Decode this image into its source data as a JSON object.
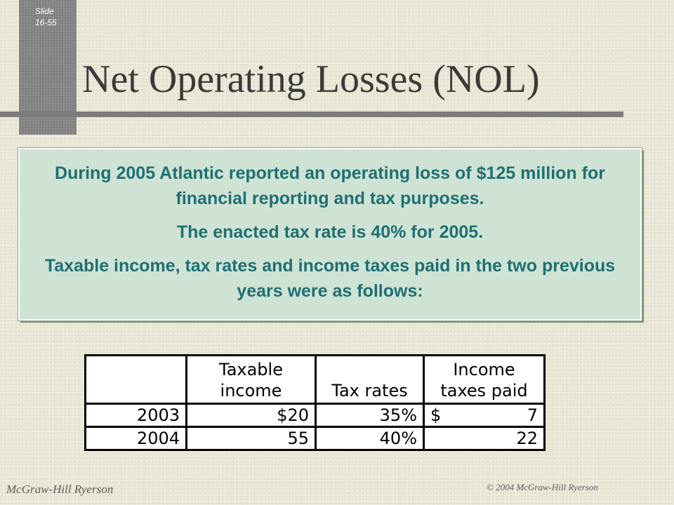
{
  "slide": {
    "line1": "Slide",
    "line2": "16-55"
  },
  "title": "Net Operating Losses (NOL)",
  "info": {
    "p1": "During 2005 Atlantic reported an operating loss of $125 million for financial reporting and tax purposes.",
    "p2": "The enacted tax rate is 40% for 2005.",
    "p3": "Taxable income, tax rates and income taxes paid in the two previous years were as follows:"
  },
  "table": {
    "headers": {
      "year": "",
      "taxable_income_line1": "Taxable",
      "taxable_income_line2": "income",
      "tax_rates": "Tax rates",
      "income_taxes_line1": "Income",
      "income_taxes_line2": "taxes paid"
    },
    "rows": [
      {
        "year": "2003",
        "taxable_income": "$20",
        "tax_rate": "35%",
        "taxes_currency": "$",
        "taxes_paid": "7"
      },
      {
        "year": "2004",
        "taxable_income": "55",
        "tax_rate": "40%",
        "taxes_currency": "",
        "taxes_paid": "22"
      }
    ]
  },
  "footer": {
    "left": "McGraw-Hill Ryerson",
    "right": "© 2004 McGraw-Hill Ryerson"
  },
  "colors": {
    "background": "#ebe8d8",
    "side_bar": "#8a8a8a",
    "title_rule": "#7b7b7b",
    "box_fill": "#cfe3d4",
    "box_text": "#1f6f73"
  }
}
